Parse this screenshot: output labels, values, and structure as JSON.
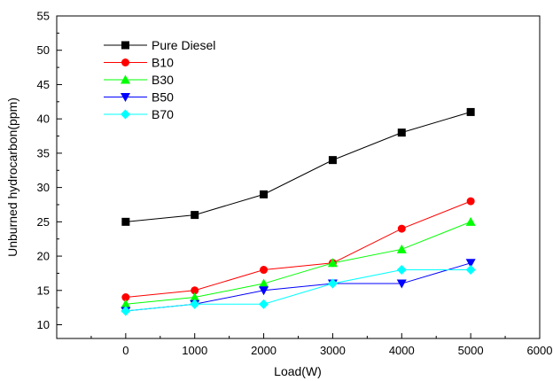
{
  "chart_data": {
    "type": "line",
    "title": "",
    "xlabel": "Load(W)",
    "ylabel": "Unburned hydrocarbon(ppm)",
    "xlim": [
      -1000,
      6000
    ],
    "ylim": [
      8,
      55
    ],
    "x_ticks": [
      0,
      1000,
      2000,
      3000,
      4000,
      5000,
      6000
    ],
    "y_ticks": [
      10,
      15,
      20,
      25,
      30,
      35,
      40,
      45,
      50,
      55
    ],
    "grid": false,
    "legend_position": "top-left",
    "x": [
      0,
      1000,
      2000,
      3000,
      4000,
      5000
    ],
    "series": [
      {
        "name": "Pure Diesel",
        "color": "#000000",
        "marker": "square",
        "values": [
          25,
          26,
          29,
          34,
          38,
          41
        ]
      },
      {
        "name": "B10",
        "color": "#ff0000",
        "marker": "circle",
        "values": [
          14,
          15,
          18,
          19,
          24,
          28
        ]
      },
      {
        "name": "B30",
        "color": "#00ff00",
        "marker": "triangle-up",
        "values": [
          13,
          14,
          16,
          19,
          21,
          25
        ]
      },
      {
        "name": "B50",
        "color": "#0000ff",
        "marker": "triangle-down",
        "values": [
          12,
          13,
          15,
          16,
          16,
          19
        ]
      },
      {
        "name": "B70",
        "color": "#00ffff",
        "marker": "diamond",
        "values": [
          12,
          13,
          13,
          16,
          18,
          18
        ]
      }
    ]
  }
}
